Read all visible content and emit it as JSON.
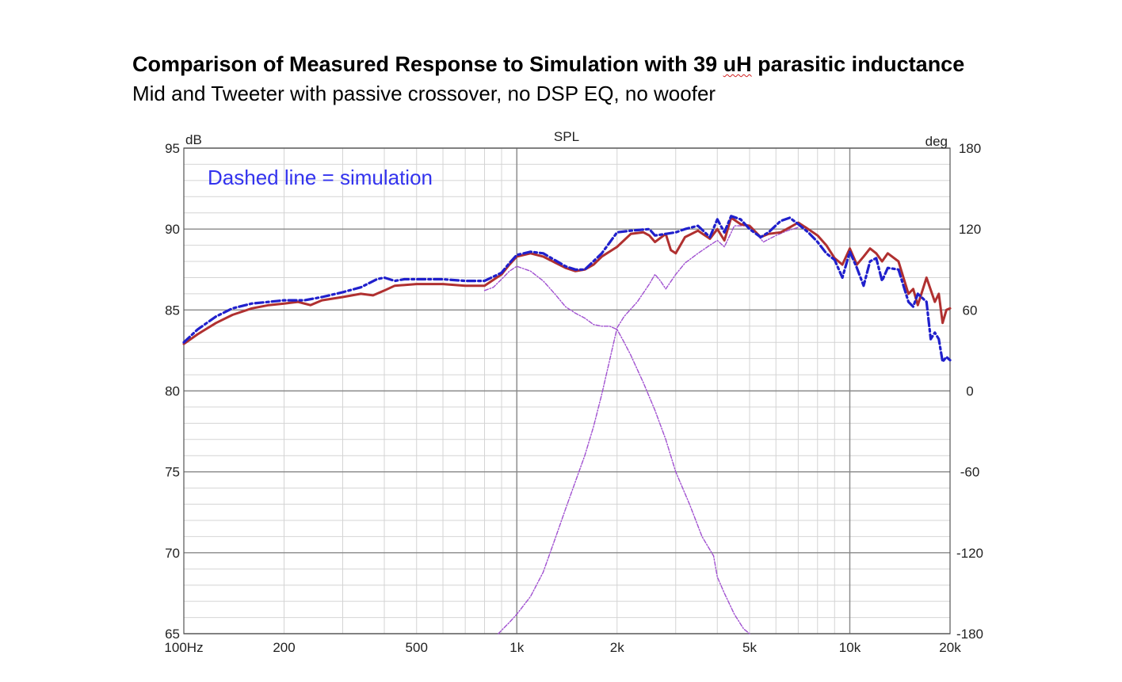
{
  "title_before": "Comparison of Measured Response to Simulation with 39 ",
  "title_uh": "uH",
  "title_after": " parasitic inductance",
  "subtitle": "Mid and Tweeter with passive crossover, no DSP EQ, no woofer",
  "colors": {
    "measured": "#b03030",
    "simulation": "#2020cc",
    "components": "#a050d0",
    "annotation": "#3333ee",
    "grid_major": "#888888",
    "grid_minor": "#d4d4d4"
  },
  "chart_data": {
    "type": "line",
    "title": "SPL",
    "annotation": "Dashed line = simulation",
    "xscale": "log",
    "xlim": [
      100,
      20000
    ],
    "ylim": [
      65,
      95
    ],
    "y2lim": [
      -180,
      180
    ],
    "ylabel": "dB",
    "y2label": "deg",
    "x_ticks": [
      {
        "value": 100,
        "label": "100Hz"
      },
      {
        "value": 200,
        "label": "200"
      },
      {
        "value": 500,
        "label": "500"
      },
      {
        "value": 1000,
        "label": "1k"
      },
      {
        "value": 2000,
        "label": "2k"
      },
      {
        "value": 5000,
        "label": "5k"
      },
      {
        "value": 10000,
        "label": "10k"
      },
      {
        "value": 20000,
        "label": "20k"
      }
    ],
    "y_ticks": [
      95,
      90,
      85,
      80,
      75,
      70,
      65
    ],
    "y2_ticks": [
      180,
      120,
      60,
      0,
      -60,
      -120,
      -180
    ],
    "grid": true,
    "series": [
      {
        "style": "solid",
        "x": [
          100,
          110,
          125,
          140,
          160,
          180,
          200,
          220,
          240,
          260,
          300,
          340,
          370,
          400,
          430,
          500,
          600,
          700,
          800,
          900,
          950,
          1000,
          1100,
          1200,
          1400,
          1500,
          1600,
          1700,
          1800,
          2000,
          2200,
          2400,
          2500,
          2600,
          2800,
          2900,
          3000,
          3200,
          3500,
          3800,
          4000,
          4200,
          4400,
          4700,
          5000,
          5400,
          5700,
          6200,
          6600,
          7000,
          7500,
          8000,
          8500,
          9000,
          9500,
          10000,
          10500,
          11000,
          11500,
          12000,
          12500,
          13000,
          14000,
          15000,
          15500,
          16000,
          17000,
          18000,
          18500,
          19000,
          19500,
          20000
        ],
        "y": [
          82.9,
          83.5,
          84.2,
          84.7,
          85.1,
          85.3,
          85.4,
          85.5,
          85.3,
          85.6,
          85.8,
          86.0,
          85.9,
          86.2,
          86.5,
          86.6,
          86.6,
          86.5,
          86.5,
          87.2,
          87.8,
          88.3,
          88.5,
          88.3,
          87.6,
          87.4,
          87.5,
          87.8,
          88.3,
          88.9,
          89.7,
          89.8,
          89.6,
          89.2,
          89.7,
          88.7,
          88.5,
          89.5,
          89.9,
          89.4,
          90.0,
          89.3,
          90.7,
          90.3,
          90.2,
          89.5,
          89.7,
          89.8,
          90.1,
          90.4,
          90.0,
          89.6,
          89.0,
          88.2,
          87.8,
          88.8,
          87.8,
          88.3,
          88.8,
          88.5,
          88.0,
          88.5,
          88.0,
          86.0,
          86.3,
          85.3,
          87.0,
          85.5,
          86.0,
          84.2,
          85.0,
          85.1
        ]
      },
      {
        "style": "dash-dot",
        "x": [
          100,
          110,
          125,
          140,
          160,
          180,
          200,
          230,
          260,
          300,
          340,
          380,
          400,
          430,
          460,
          500,
          600,
          700,
          800,
          900,
          950,
          1000,
          1100,
          1200,
          1400,
          1500,
          1600,
          1800,
          2000,
          2200,
          2500,
          2600,
          2800,
          3000,
          3200,
          3500,
          3800,
          4000,
          4200,
          4400,
          4700,
          5000,
          5400,
          5700,
          6200,
          6600,
          7000,
          7500,
          8000,
          8500,
          9000,
          9500,
          10000,
          10500,
          11000,
          11500,
          12000,
          12500,
          13000,
          14000,
          15000,
          15500,
          16000,
          17000,
          17500,
          18000,
          18500,
          19000,
          19500,
          20000
        ],
        "y": [
          83.0,
          83.8,
          84.6,
          85.1,
          85.4,
          85.5,
          85.6,
          85.6,
          85.8,
          86.1,
          86.4,
          86.9,
          87.0,
          86.8,
          86.9,
          86.9,
          86.9,
          86.8,
          86.8,
          87.3,
          87.9,
          88.4,
          88.6,
          88.5,
          87.7,
          87.5,
          87.5,
          88.5,
          89.8,
          89.9,
          90.0,
          89.6,
          89.7,
          89.8,
          90.0,
          90.2,
          89.5,
          90.6,
          89.8,
          90.8,
          90.6,
          90.0,
          89.5,
          89.8,
          90.5,
          90.7,
          90.3,
          89.8,
          89.2,
          88.5,
          88.1,
          87.0,
          88.6,
          87.6,
          86.5,
          88.0,
          88.2,
          86.8,
          87.6,
          87.5,
          85.5,
          85.2,
          86.0,
          85.5,
          83.2,
          83.6,
          83.2,
          81.8,
          82.1,
          81.9
        ]
      },
      {
        "style": "dotted",
        "x": [
          800,
          850,
          900,
          950,
          1000,
          1100,
          1200,
          1300,
          1400,
          1500,
          1600,
          1700,
          1800,
          1900,
          2000,
          2100,
          2200,
          2400,
          2600,
          2800,
          3000,
          3300,
          3600,
          3900,
          4000,
          4200,
          4500,
          4800,
          5000
        ],
        "y": [
          86.2,
          86.4,
          86.9,
          87.4,
          87.7,
          87.4,
          86.8,
          86.0,
          85.2,
          84.8,
          84.5,
          84.1,
          84.0,
          84.0,
          83.8,
          83.0,
          82.2,
          80.5,
          78.8,
          77.0,
          75.0,
          73.0,
          71.0,
          69.8,
          68.5,
          67.5,
          66.2,
          65.3,
          65.0
        ]
      },
      {
        "style": "dotted",
        "x": [
          880,
          950,
          1000,
          1100,
          1200,
          1300,
          1400,
          1500,
          1600,
          1700,
          1800,
          1900,
          2000,
          2100,
          2300,
          2500,
          2600,
          2700,
          2800,
          3000,
          3200,
          3500,
          3800,
          4000,
          4200,
          4500,
          5000,
          5500,
          6000,
          6500,
          7000
        ],
        "y": [
          65.0,
          65.7,
          66.2,
          67.3,
          68.8,
          70.8,
          72.7,
          74.4,
          76.0,
          77.8,
          79.8,
          81.9,
          83.9,
          84.6,
          85.5,
          86.6,
          87.2,
          86.8,
          86.3,
          87.2,
          87.9,
          88.5,
          89.0,
          89.3,
          88.9,
          90.2,
          90.2,
          89.2,
          89.6,
          89.9,
          90.1
        ]
      }
    ]
  }
}
